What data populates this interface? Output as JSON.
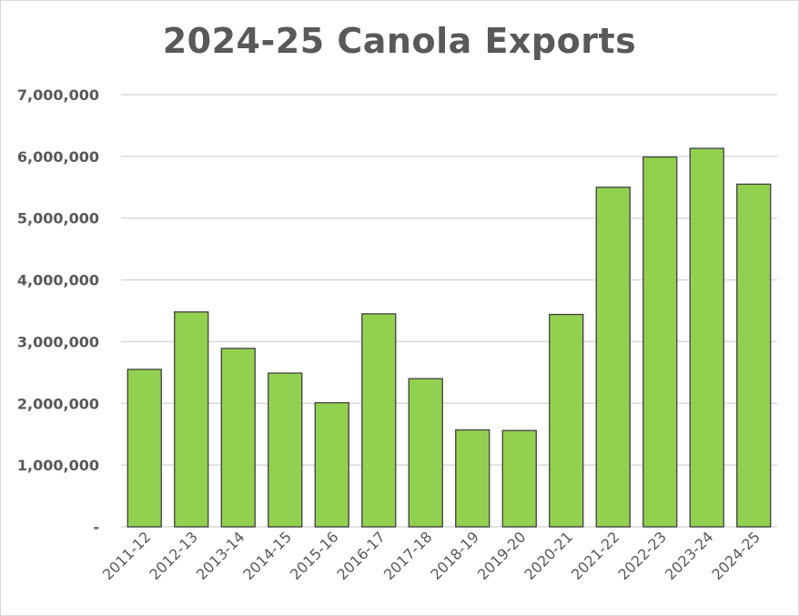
{
  "chart_data": {
    "type": "bar",
    "title": "2024-25 Canola Exports",
    "categories": [
      "2011-12",
      "2012-13",
      "2013-14",
      "2014-15",
      "2015-16",
      "2016-17",
      "2017-18",
      "2018-19",
      "2019-20",
      "2020-21",
      "2021-22",
      "2022-23",
      "2023-24",
      "2024-25"
    ],
    "values": [
      2550000,
      3480000,
      2890000,
      2490000,
      2010000,
      3450000,
      2400000,
      1570000,
      1560000,
      3440000,
      5500000,
      5990000,
      6130000,
      5550000
    ],
    "ylim": [
      0,
      7000000
    ],
    "yticks": [
      0,
      1000000,
      2000000,
      3000000,
      4000000,
      5000000,
      6000000,
      7000000
    ],
    "ytick_labels": [
      "-",
      "1,000,000",
      "2,000,000",
      "3,000,000",
      "4,000,000",
      "5,000,000",
      "6,000,000",
      "7,000,000"
    ],
    "grid": true,
    "bar_color": "#92d050",
    "bar_edge_color": "#404040"
  }
}
